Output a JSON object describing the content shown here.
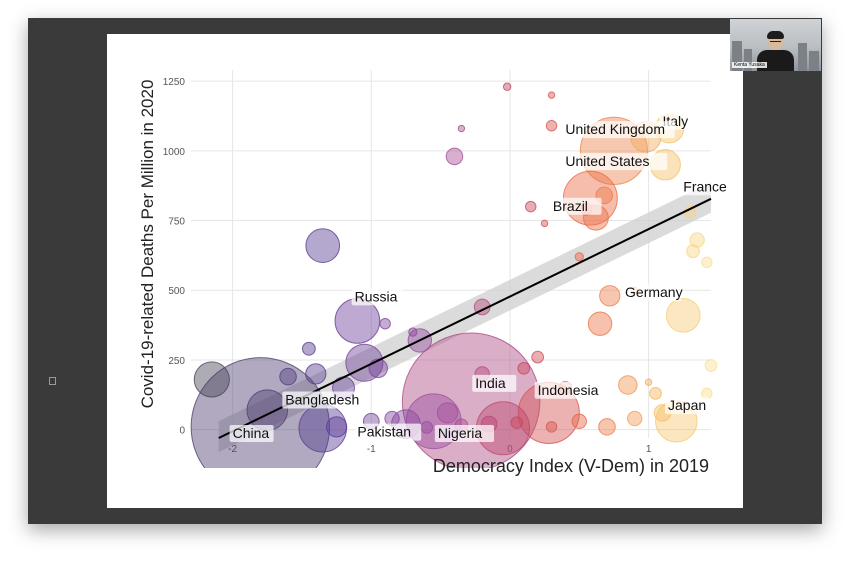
{
  "webcam": {
    "name": "Kenta Yusaka"
  },
  "chart_data": {
    "type": "scatter",
    "title": "",
    "xlabel": "Democracy Index (V-Dem) in 2019",
    "ylabel": "Covid-19-related Deaths Per Million in 2020",
    "xlim": [
      -2.3,
      1.45
    ],
    "ylim": [
      -30,
      1290
    ],
    "xticks": [
      -2,
      -1,
      0,
      1
    ],
    "xtick_labels": [
      "-2",
      "-1",
      "0",
      "1"
    ],
    "yticks": [
      0,
      250,
      500,
      750,
      1000,
      1250
    ],
    "ytick_labels": [
      "0",
      "250",
      "500",
      "750",
      "1000",
      "1250"
    ],
    "grid": true,
    "trend_line": {
      "x": [
        -2.1,
        1.5
      ],
      "y": [
        -30,
        840
      ]
    },
    "confidence_band": {
      "x": [
        -2.1,
        1.5
      ],
      "lower": [
        -80,
        790
      ],
      "upper": [
        30,
        900
      ]
    },
    "points": [
      {
        "x": -1.8,
        "y": 10,
        "pop": 1400,
        "label": "China"
      },
      {
        "x": 1.15,
        "y": 1080,
        "pop": 60,
        "label": "Italy"
      },
      {
        "x": 0.98,
        "y": 1050,
        "pop": 67,
        "label": "United Kingdom"
      },
      {
        "x": 0.75,
        "y": 1000,
        "pop": 330,
        "label": "United States"
      },
      {
        "x": 1.12,
        "y": 950,
        "pop": 67,
        "label": "France"
      },
      {
        "x": 0.58,
        "y": 830,
        "pop": 212,
        "label": "Brazil"
      },
      {
        "x": 1.25,
        "y": 410,
        "pop": 83,
        "label": "Germany"
      },
      {
        "x": -1.1,
        "y": 390,
        "pop": 146,
        "label": "Russia"
      },
      {
        "x": -0.28,
        "y": 100,
        "pop": 1380,
        "label": "India"
      },
      {
        "x": 0.28,
        "y": 60,
        "pop": 273,
        "label": "Indonesia"
      },
      {
        "x": 1.2,
        "y": 30,
        "pop": 126,
        "label": "Japan"
      },
      {
        "x": -1.35,
        "y": 5,
        "pop": 165,
        "label": "Bangladesh"
      },
      {
        "x": -0.55,
        "y": 30,
        "pop": 220,
        "label": "Pakistan"
      },
      {
        "x": -0.05,
        "y": 5,
        "pop": 206,
        "label": "Nigeria"
      },
      {
        "x": -1.35,
        "y": 660,
        "pop": 83
      },
      {
        "x": -1.05,
        "y": 240,
        "pop": 100
      },
      {
        "x": -0.65,
        "y": 320,
        "pop": 40
      },
      {
        "x": -2.15,
        "y": 180,
        "pop": 90
      },
      {
        "x": -1.75,
        "y": 70,
        "pop": 120
      },
      {
        "x": -1.4,
        "y": 200,
        "pop": 30
      },
      {
        "x": -1.6,
        "y": 190,
        "pop": 20
      },
      {
        "x": -1.45,
        "y": 290,
        "pop": 12
      },
      {
        "x": -1.2,
        "y": 150,
        "pop": 35
      },
      {
        "x": -0.95,
        "y": 220,
        "pop": 25
      },
      {
        "x": -0.75,
        "y": 20,
        "pop": 60
      },
      {
        "x": -0.85,
        "y": 40,
        "pop": 15
      },
      {
        "x": -0.45,
        "y": 60,
        "pop": 30
      },
      {
        "x": -0.2,
        "y": 200,
        "pop": 15
      },
      {
        "x": 0.1,
        "y": 220,
        "pop": 10
      },
      {
        "x": -0.4,
        "y": 980,
        "pop": 20
      },
      {
        "x": -0.2,
        "y": 440,
        "pop": 18
      },
      {
        "x": 0.3,
        "y": 1090,
        "pop": 8
      },
      {
        "x": 0.55,
        "y": 790,
        "pop": 10
      },
      {
        "x": 0.62,
        "y": 760,
        "pop": 45
      },
      {
        "x": 0.68,
        "y": 840,
        "pop": 20
      },
      {
        "x": 0.72,
        "y": 480,
        "pop": 30
      },
      {
        "x": 0.65,
        "y": 380,
        "pop": 40
      },
      {
        "x": 0.85,
        "y": 160,
        "pop": 25
      },
      {
        "x": 0.4,
        "y": 150,
        "pop": 12
      },
      {
        "x": 0.2,
        "y": 260,
        "pop": 10
      },
      {
        "x": 0.15,
        "y": 800,
        "pop": 8
      },
      {
        "x": 0.5,
        "y": 620,
        "pop": 5
      },
      {
        "x": 1.3,
        "y": 780,
        "pop": 10
      },
      {
        "x": 1.35,
        "y": 680,
        "pop": 15
      },
      {
        "x": 1.32,
        "y": 640,
        "pop": 12
      },
      {
        "x": 1.42,
        "y": 600,
        "pop": 8
      },
      {
        "x": 1.45,
        "y": 230,
        "pop": 10
      },
      {
        "x": 1.42,
        "y": 130,
        "pop": 8
      },
      {
        "x": 1.05,
        "y": 130,
        "pop": 10
      },
      {
        "x": 1.1,
        "y": 60,
        "pop": 20
      },
      {
        "x": 0.9,
        "y": 40,
        "pop": 15
      },
      {
        "x": 0.7,
        "y": 10,
        "pop": 20
      },
      {
        "x": 0.5,
        "y": 30,
        "pop": 15
      },
      {
        "x": 0.3,
        "y": 10,
        "pop": 8
      },
      {
        "x": 0.05,
        "y": 25,
        "pop": 10
      },
      {
        "x": -0.15,
        "y": 20,
        "pop": 18
      },
      {
        "x": -0.35,
        "y": 15,
        "pop": 12
      },
      {
        "x": -0.6,
        "y": 8,
        "pop": 10
      },
      {
        "x": -1.0,
        "y": 30,
        "pop": 18
      },
      {
        "x": -1.25,
        "y": 10,
        "pop": 30
      },
      {
        "x": -0.9,
        "y": 380,
        "pop": 8
      },
      {
        "x": -0.7,
        "y": 350,
        "pop": 5
      },
      {
        "x": -0.02,
        "y": 1230,
        "pop": 4
      },
      {
        "x": 0.3,
        "y": 1200,
        "pop": 3
      },
      {
        "x": -0.35,
        "y": 1080,
        "pop": 3
      },
      {
        "x": 0.25,
        "y": 740,
        "pop": 3
      },
      {
        "x": 0.9,
        "y": 500,
        "pop": 3
      },
      {
        "x": 1.0,
        "y": 170,
        "pop": 3
      }
    ]
  }
}
